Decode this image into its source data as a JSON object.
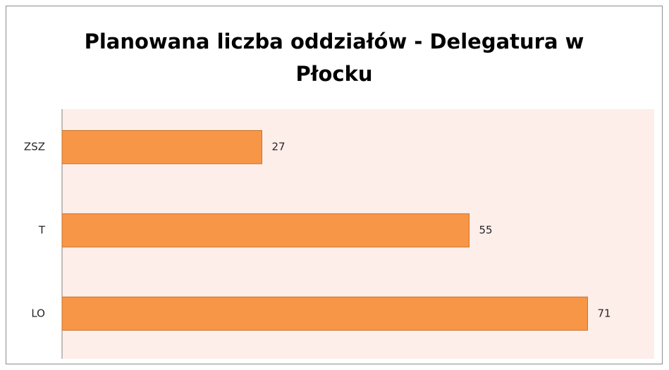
{
  "chart_data": {
    "type": "bar",
    "orientation": "horizontal",
    "title": "Planowana liczba oddziałów - Delegatura w Płocku",
    "categories": [
      "ZSZ",
      "T",
      "LO"
    ],
    "values": [
      27,
      55,
      71
    ],
    "color": "#f79646",
    "xlim": [
      0,
      80
    ]
  }
}
